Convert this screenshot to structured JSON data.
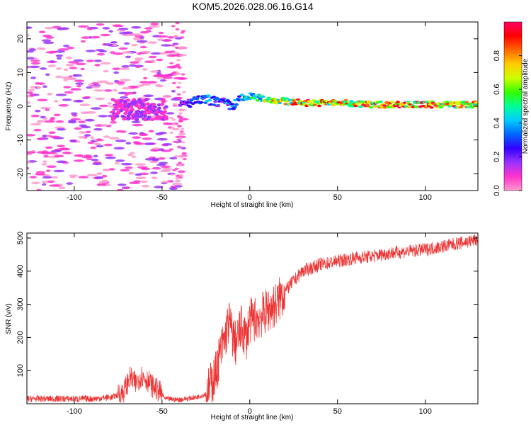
{
  "title": "KOM5.2026.028.06.16.G14",
  "colors": {
    "line": "#ee3333",
    "axes": "#000000",
    "background": "#ffffff",
    "colormap": [
      "#ff99cc",
      "#ff33cc",
      "#9933ff",
      "#3300ff",
      "#0066ff",
      "#00ccff",
      "#00ff99",
      "#33ff00",
      "#ccff00",
      "#ffcc00",
      "#ff6600",
      "#ff0000",
      "#ff0066"
    ]
  },
  "chart_data": [
    {
      "type": "heatmap",
      "title": "",
      "xlabel": "Height of straight line (km)",
      "ylabel": "Frequency (Hz)",
      "xlim": [
        -127,
        130
      ],
      "ylim": [
        -25,
        25
      ],
      "x_ticks": [
        -100,
        -50,
        0,
        50,
        100
      ],
      "x_tick_labels": [
        "-100",
        "-50",
        "0",
        "50",
        "100"
      ],
      "y_ticks": [
        -20,
        -10,
        0,
        10,
        20
      ],
      "y_tick_labels": [
        "-20",
        "-10",
        "0",
        "10",
        "20"
      ],
      "ridge": {
        "description_points_x": [
          -75,
          -60,
          -45,
          -35,
          -25,
          -15,
          -10,
          -5,
          0,
          10,
          20,
          30,
          50,
          70,
          90,
          110,
          130
        ],
        "description_points_freq": [
          -1,
          -1,
          -1,
          1,
          2,
          1,
          0,
          2,
          3,
          2,
          1.5,
          1,
          1,
          0.5,
          0.5,
          0.5,
          0.5
        ],
        "amplitude": [
          0.15,
          0.2,
          0.15,
          0.3,
          0.4,
          0.35,
          0.4,
          0.45,
          0.5,
          0.7,
          0.75,
          0.85,
          0.8,
          0.85,
          0.9,
          0.8,
          0.75
        ]
      },
      "colorbar": {
        "label": "Normalized spectral amplitude",
        "range": [
          0,
          1
        ],
        "ticks": [
          0.0,
          0.2,
          0.4,
          0.6,
          0.8
        ],
        "tick_labels": [
          "0.0",
          "0.2",
          "0.4",
          "0.6",
          "0.8"
        ]
      }
    },
    {
      "type": "line",
      "title": "",
      "xlabel": "Height of straight line (km)",
      "ylabel": "SNR (v/v)",
      "xlim": [
        -127,
        130
      ],
      "ylim": [
        0,
        515
      ],
      "x_ticks": [
        -100,
        -50,
        0,
        50,
        100
      ],
      "x_tick_labels": [
        "-100",
        "-50",
        "0",
        "50",
        "100"
      ],
      "y_ticks": [
        100,
        200,
        300,
        400,
        500
      ],
      "y_tick_labels": [
        "100",
        "200",
        "300",
        "400",
        "500"
      ],
      "series": [
        {
          "name": "SNR",
          "x": [
            -127,
            -110,
            -90,
            -78,
            -72,
            -68,
            -65,
            -62,
            -58,
            -55,
            -52,
            -48,
            -40,
            -30,
            -25,
            -20,
            -17,
            -14,
            -12,
            -10,
            -8,
            -5,
            -2,
            0,
            5,
            10,
            15,
            20,
            25,
            30,
            40,
            50,
            60,
            70,
            80,
            90,
            100,
            110,
            120,
            130
          ],
          "y": [
            15,
            15,
            15,
            20,
            35,
            80,
            60,
            85,
            70,
            50,
            40,
            15,
            12,
            20,
            30,
            80,
            150,
            200,
            250,
            210,
            180,
            230,
            200,
            250,
            260,
            280,
            300,
            340,
            370,
            400,
            420,
            430,
            440,
            445,
            455,
            460,
            465,
            475,
            485,
            495
          ]
        }
      ]
    }
  ]
}
